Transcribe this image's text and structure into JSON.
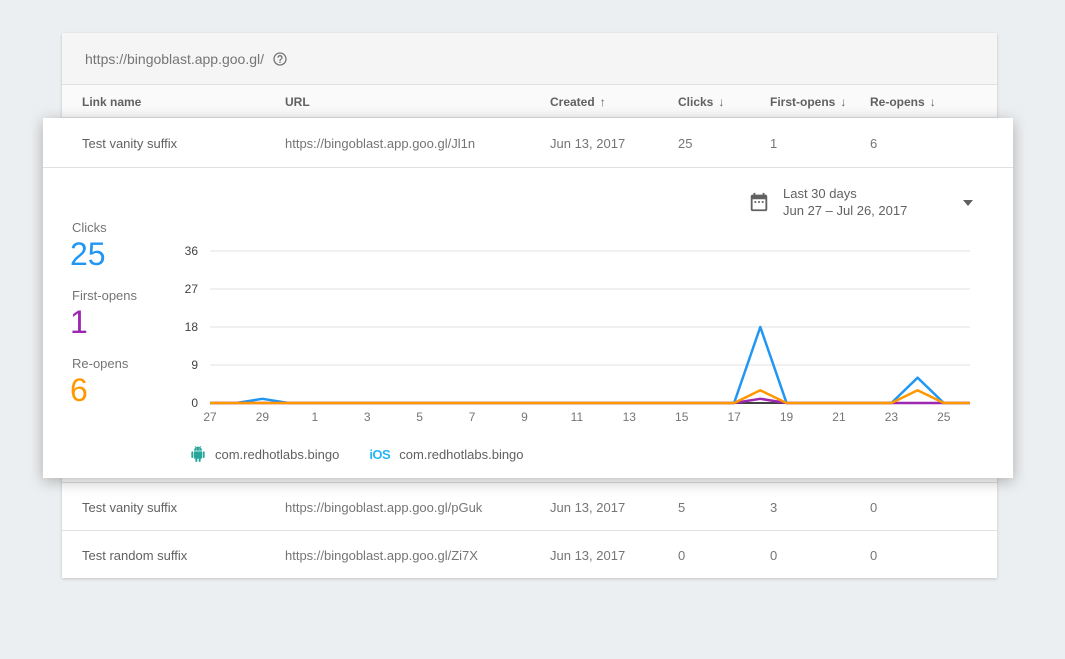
{
  "table": {
    "url_bar": "https://bingoblast.app.goo.gl/",
    "columns": [
      {
        "label": "Link name",
        "arrow": ""
      },
      {
        "label": "URL",
        "arrow": ""
      },
      {
        "label": "Created",
        "arrow": "↑"
      },
      {
        "label": "Clicks",
        "arrow": "↓"
      },
      {
        "label": "First-opens",
        "arrow": "↓"
      },
      {
        "label": "Re-opens",
        "arrow": "↓"
      }
    ],
    "rows": [
      {
        "link_name": "Test vanity suffix",
        "url": "https://bingoblast.app.goo.gl/Jl1n",
        "created": "Jun 13, 2017",
        "clicks": "25",
        "first_opens": "1",
        "re_opens": "6"
      },
      {
        "link_name": "Test vanity suffix",
        "url": "https://bingoblast.app.goo.gl/pGuk",
        "created": "Jun 13, 2017",
        "clicks": "5",
        "first_opens": "3",
        "re_opens": "0"
      },
      {
        "link_name": "Test random suffix",
        "url": "https://bingoblast.app.goo.gl/Zi7X",
        "created": "Jun 13, 2017",
        "clicks": "0",
        "first_opens": "0",
        "re_opens": "0"
      }
    ]
  },
  "analytics": {
    "date_range": {
      "preset": "Last 30 days",
      "range": "Jun 27 – Jul 26, 2017"
    },
    "stats": [
      {
        "label": "Clicks",
        "value": "25",
        "color": "#2196F3"
      },
      {
        "label": "First-opens",
        "value": "1",
        "color": "#9C27B0"
      },
      {
        "label": "Re-opens",
        "value": "6",
        "color": "#FF9800"
      }
    ],
    "legend": [
      {
        "platform": "android",
        "label": "com.redhotlabs.bingo",
        "color": "#26A69A"
      },
      {
        "platform": "ios",
        "ios_mark": "iOS",
        "label": "com.redhotlabs.bingo",
        "color": "#29B6F6"
      }
    ]
  },
  "chart_data": {
    "type": "line",
    "title": "Dynamic link performance, last 30 days (Jun 27 – Jul 26, 2017)",
    "x_days": [
      "27",
      "28",
      "29",
      "30",
      "1",
      "2",
      "3",
      "4",
      "5",
      "6",
      "7",
      "8",
      "9",
      "10",
      "11",
      "12",
      "13",
      "14",
      "15",
      "16",
      "17",
      "18",
      "19",
      "20",
      "21",
      "22",
      "23",
      "24",
      "25",
      "26"
    ],
    "x_label_every": 2,
    "series": [
      {
        "name": "Clicks",
        "color": "#2196F3",
        "values": [
          0,
          0,
          1,
          0,
          0,
          0,
          0,
          0,
          0,
          0,
          0,
          0,
          0,
          0,
          0,
          0,
          0,
          0,
          0,
          0,
          0,
          18,
          0,
          0,
          0,
          0,
          0,
          6,
          0,
          0
        ]
      },
      {
        "name": "First-opens",
        "color": "#9C27B0",
        "values": [
          0,
          0,
          0,
          0,
          0,
          0,
          0,
          0,
          0,
          0,
          0,
          0,
          0,
          0,
          0,
          0,
          0,
          0,
          0,
          0,
          0,
          1,
          0,
          0,
          0,
          0,
          0,
          0,
          0,
          0
        ]
      },
      {
        "name": "Re-opens",
        "color": "#FF9800",
        "values": [
          0,
          0,
          0,
          0,
          0,
          0,
          0,
          0,
          0,
          0,
          0,
          0,
          0,
          0,
          0,
          0,
          0,
          0,
          0,
          0,
          0,
          3,
          0,
          0,
          0,
          0,
          0,
          3,
          0,
          0
        ]
      }
    ],
    "ylim": [
      0,
      36
    ],
    "yticks": [
      0,
      9,
      18,
      27,
      36
    ],
    "grid": true,
    "legend_position": "bottom",
    "axis_color": "#424242",
    "grid_color": "#e0e0e0",
    "ytick_color": "#424242",
    "xtick_color": "#757575"
  }
}
